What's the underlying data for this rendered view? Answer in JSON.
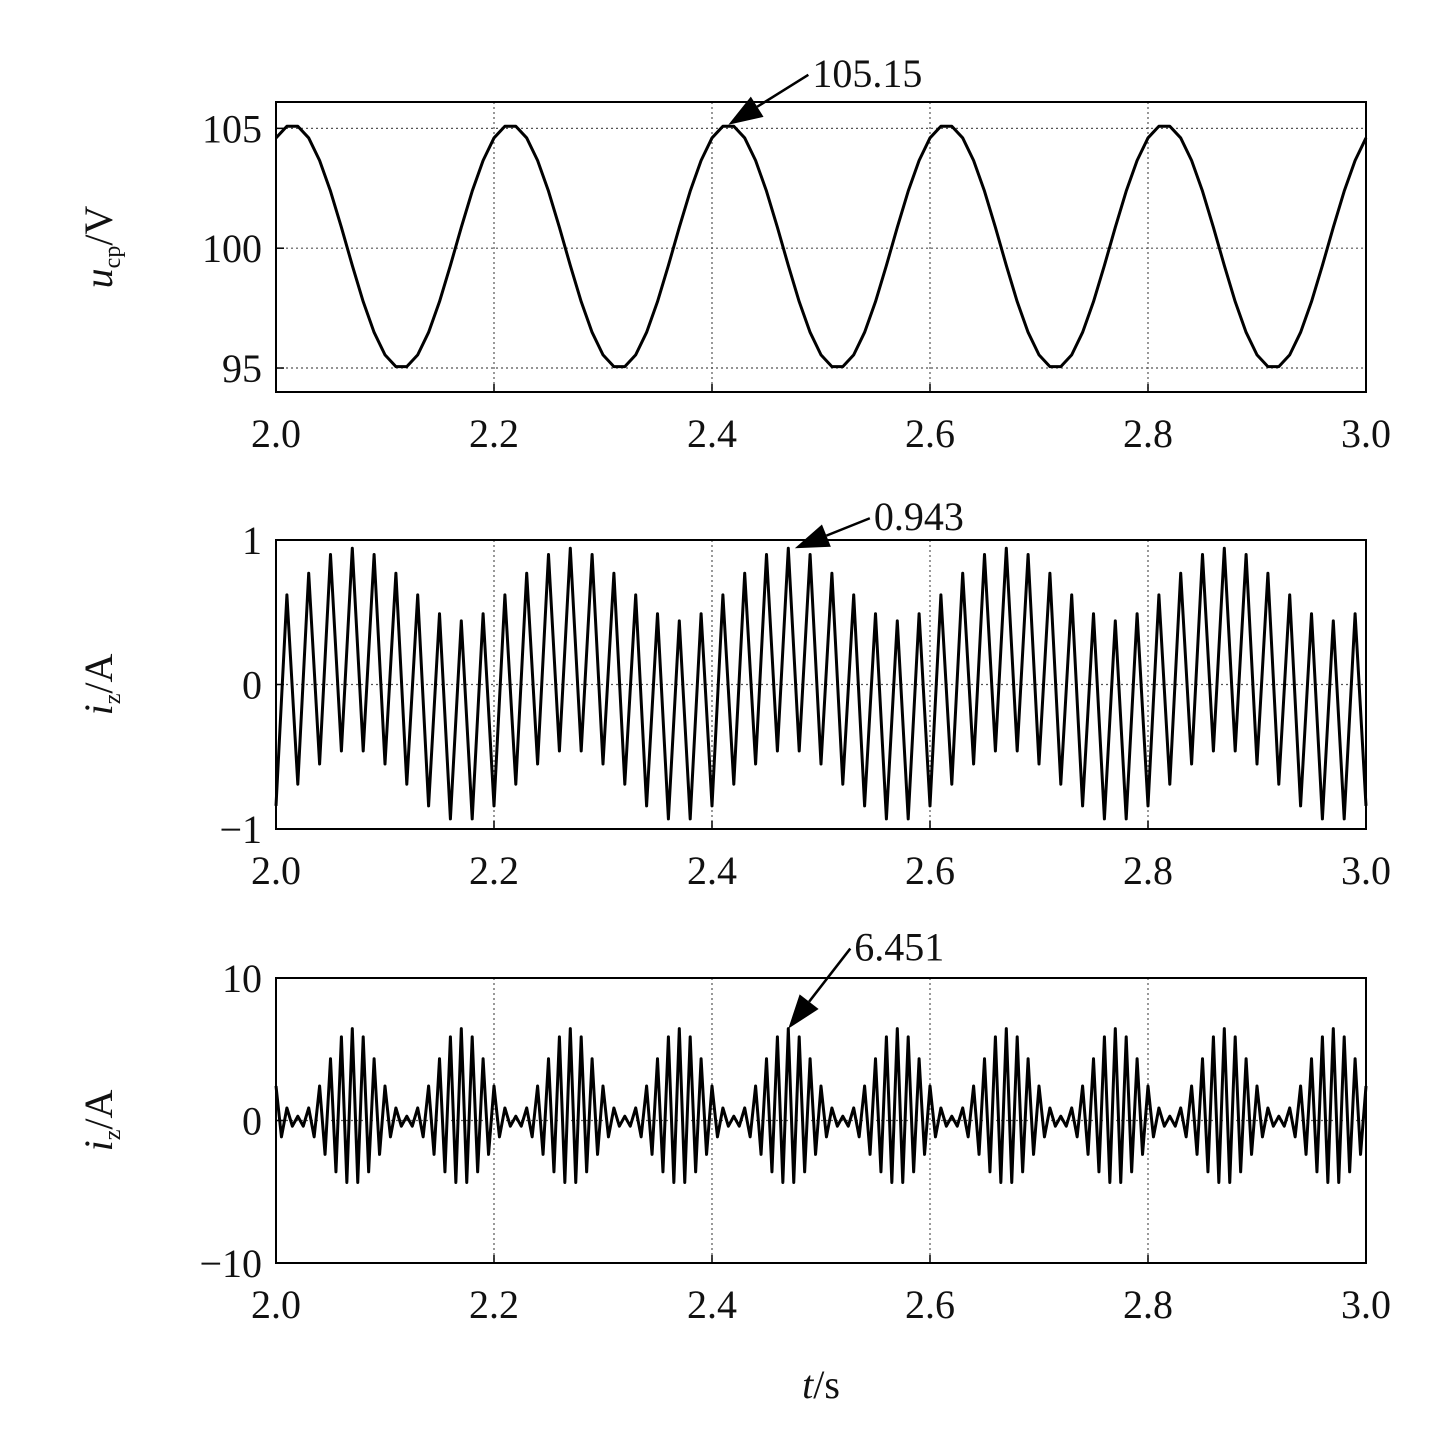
{
  "chart_data": [
    {
      "type": "line",
      "ylabel": {
        "text": "u",
        "sub": "cp",
        "unit": "/V"
      },
      "annotation": {
        "text": "105.15",
        "x": 2.415,
        "y": 105.15
      },
      "xlim": [
        2,
        3
      ],
      "xticks": [
        {
          "value": 2,
          "label": "2.0"
        },
        2.2,
        2.4,
        2.6,
        2.8,
        {
          "value": 3,
          "label": "3.0"
        }
      ],
      "ylim": [
        94,
        106.1
      ],
      "yticks": [
        95,
        100,
        105
      ],
      "grid": true,
      "x": [
        2,
        2.01,
        2.02,
        2.03,
        2.04,
        2.05,
        2.06,
        2.07,
        2.08,
        2.09,
        2.1,
        2.11,
        2.12,
        2.13,
        2.14,
        2.15,
        2.16,
        2.17,
        2.18,
        2.19,
        2.2,
        2.21,
        2.22,
        2.23,
        2.24,
        2.25,
        2.26,
        2.27,
        2.28,
        2.29,
        2.3,
        2.31,
        2.32,
        2.33,
        2.34,
        2.35,
        2.36,
        2.37,
        2.38,
        2.39,
        2.4,
        2.41,
        2.42,
        2.43,
        2.44,
        2.45,
        2.46,
        2.47,
        2.48,
        2.49,
        2.5,
        2.51,
        2.52,
        2.53,
        2.54,
        2.55,
        2.56,
        2.57,
        2.58,
        2.59,
        2.6,
        2.61,
        2.62,
        2.63,
        2.64,
        2.65,
        2.66,
        2.67,
        2.68,
        2.69,
        2.7,
        2.71,
        2.72,
        2.73,
        2.74,
        2.75,
        2.76,
        2.77,
        2.78,
        2.79,
        2.8,
        2.81,
        2.82,
        2.83,
        2.84,
        2.85,
        2.86,
        2.87,
        2.88,
        2.89,
        2.9,
        2.91,
        2.92,
        2.93,
        2.94,
        2.95,
        2.96,
        2.97,
        2.98,
        2.99,
        3
      ],
      "series": [
        {
          "color": "#000000",
          "values": [
            104.6,
            105.09,
            105.09,
            104.6,
            103.66,
            102.38,
            100.87,
            99.28,
            97.77,
            96.49,
            95.55,
            95.06,
            95.06,
            95.55,
            96.49,
            97.77,
            99.28,
            100.87,
            102.38,
            103.66,
            104.6,
            105.09,
            105.09,
            104.6,
            103.66,
            102.38,
            100.87,
            99.28,
            97.77,
            96.49,
            95.55,
            95.06,
            95.06,
            95.55,
            96.49,
            97.77,
            99.28,
            100.87,
            102.38,
            103.66,
            104.6,
            105.09,
            105.09,
            104.6,
            103.66,
            102.38,
            100.87,
            99.28,
            97.77,
            96.49,
            95.55,
            95.06,
            95.06,
            95.55,
            96.49,
            97.77,
            99.28,
            100.87,
            102.38,
            103.66,
            104.6,
            105.09,
            105.09,
            104.6,
            103.66,
            102.38,
            100.87,
            99.28,
            97.77,
            96.49,
            95.55,
            95.06,
            95.06,
            95.55,
            96.49,
            97.77,
            99.28,
            100.87,
            102.38,
            103.66,
            104.6,
            105.09,
            105.09,
            104.6,
            103.66,
            102.38,
            100.87,
            99.28,
            97.77,
            96.49,
            95.55,
            95.06,
            95.06,
            95.55,
            96.49,
            97.77,
            99.28,
            100.87,
            102.38,
            103.66,
            104.6
          ]
        }
      ]
    },
    {
      "type": "line",
      "ylabel": {
        "text": "i",
        "sub": "z",
        "unit": "/A"
      },
      "annotation": {
        "text": "0.943",
        "x": 2.476,
        "y": 0.943
      },
      "xlim": [
        2,
        3
      ],
      "xticks": [
        {
          "value": 2,
          "label": "2.0"
        },
        2.2,
        2.4,
        2.6,
        2.8,
        {
          "value": 3,
          "label": "3.0"
        }
      ],
      "ylim": [
        -1,
        1
      ],
      "yticks": [
        {
          "value": -1,
          "label": "−1"
        },
        0,
        1
      ],
      "grid": true,
      "x": [
        2,
        2.01,
        2.02,
        2.03,
        2.04,
        2.05,
        2.06,
        2.07,
        2.08,
        2.09,
        2.1,
        2.11,
        2.12,
        2.13,
        2.14,
        2.15,
        2.16,
        2.17,
        2.18,
        2.19,
        2.2,
        2.21,
        2.22,
        2.23,
        2.24,
        2.25,
        2.26,
        2.27,
        2.28,
        2.29,
        2.3,
        2.31,
        2.32,
        2.33,
        2.34,
        2.35,
        2.36,
        2.37,
        2.38,
        2.39,
        2.4,
        2.41,
        2.42,
        2.43,
        2.44,
        2.45,
        2.46,
        2.47,
        2.48,
        2.49,
        2.5,
        2.51,
        2.52,
        2.53,
        2.54,
        2.55,
        2.56,
        2.57,
        2.58,
        2.59,
        2.6,
        2.61,
        2.62,
        2.63,
        2.64,
        2.65,
        2.66,
        2.67,
        2.68,
        2.69,
        2.7,
        2.71,
        2.72,
        2.73,
        2.74,
        2.75,
        2.76,
        2.77,
        2.78,
        2.79,
        2.8,
        2.81,
        2.82,
        2.83,
        2.84,
        2.85,
        2.86,
        2.87,
        2.88,
        2.89,
        2.9,
        2.91,
        2.92,
        2.93,
        2.94,
        2.95,
        2.96,
        2.97,
        2.98,
        2.99,
        3
      ],
      "series": [
        {
          "color": "#000000",
          "values": [
            -0.84,
            0.62,
            -0.69,
            0.77,
            -0.55,
            0.9,
            -0.46,
            0.943,
            -0.46,
            0.9,
            -0.55,
            0.77,
            -0.69,
            0.62,
            -0.84,
            0.49,
            -0.93,
            0.44,
            -0.93,
            0.49,
            -0.84,
            0.62,
            -0.69,
            0.77,
            -0.55,
            0.9,
            -0.46,
            0.943,
            -0.46,
            0.9,
            -0.55,
            0.77,
            -0.69,
            0.62,
            -0.84,
            0.49,
            -0.93,
            0.44,
            -0.93,
            0.49,
            -0.84,
            0.62,
            -0.69,
            0.77,
            -0.55,
            0.9,
            -0.46,
            0.943,
            -0.46,
            0.9,
            -0.55,
            0.77,
            -0.69,
            0.62,
            -0.84,
            0.49,
            -0.93,
            0.44,
            -0.93,
            0.49,
            -0.84,
            0.62,
            -0.69,
            0.77,
            -0.55,
            0.9,
            -0.46,
            0.943,
            -0.46,
            0.9,
            -0.55,
            0.77,
            -0.69,
            0.62,
            -0.84,
            0.49,
            -0.93,
            0.44,
            -0.93,
            0.49,
            -0.84,
            0.62,
            -0.69,
            0.77,
            -0.55,
            0.9,
            -0.46,
            0.943,
            -0.46,
            0.9,
            -0.55,
            0.77,
            -0.69,
            0.62,
            -0.84,
            0.49,
            -0.93,
            0.44,
            -0.93,
            0.49,
            -0.84
          ]
        }
      ]
    },
    {
      "type": "line",
      "ylabel": {
        "text": "i",
        "sub": "z",
        "unit": "/A"
      },
      "xlabel": {
        "text": "t",
        "unit": "/s"
      },
      "annotation": {
        "text": "6.451",
        "x": 2.47,
        "y": 6.451
      },
      "xlim": [
        2,
        3
      ],
      "xticks": [
        {
          "value": 2,
          "label": "2.0"
        },
        2.2,
        2.4,
        2.6,
        2.8,
        {
          "value": 3,
          "label": "3.0"
        }
      ],
      "ylim": [
        -10,
        10
      ],
      "yticks": [
        {
          "value": -10,
          "label": "−10"
        },
        0,
        10
      ],
      "grid": true,
      "x": [
        2,
        2.005,
        2.01,
        2.015,
        2.02,
        2.025,
        2.03,
        2.035,
        2.04,
        2.045,
        2.05,
        2.055,
        2.06,
        2.065,
        2.07,
        2.075,
        2.08,
        2.085,
        2.09,
        2.095,
        2.1,
        2.105,
        2.11,
        2.115,
        2.12,
        2.125,
        2.13,
        2.135,
        2.14,
        2.145,
        2.15,
        2.155,
        2.16,
        2.165,
        2.17,
        2.175,
        2.18,
        2.185,
        2.19,
        2.195,
        2.2,
        2.205,
        2.21,
        2.215,
        2.22,
        2.225,
        2.23,
        2.235,
        2.24,
        2.245,
        2.25,
        2.255,
        2.26,
        2.265,
        2.27,
        2.275,
        2.28,
        2.285,
        2.29,
        2.295,
        2.3,
        2.305,
        2.31,
        2.315,
        2.32,
        2.325,
        2.33,
        2.335,
        2.34,
        2.345,
        2.35,
        2.355,
        2.36,
        2.365,
        2.37,
        2.375,
        2.38,
        2.385,
        2.39,
        2.395,
        2.4,
        2.405,
        2.41,
        2.415,
        2.42,
        2.425,
        2.43,
        2.435,
        2.44,
        2.445,
        2.45,
        2.455,
        2.46,
        2.465,
        2.47,
        2.475,
        2.48,
        2.485,
        2.49,
        2.495,
        2.5,
        2.505,
        2.51,
        2.515,
        2.52,
        2.525,
        2.53,
        2.535,
        2.54,
        2.545,
        2.55,
        2.555,
        2.56,
        2.565,
        2.57,
        2.575,
        2.58,
        2.585,
        2.59,
        2.595,
        2.6,
        2.605,
        2.61,
        2.615,
        2.62,
        2.625,
        2.63,
        2.635,
        2.64,
        2.645,
        2.65,
        2.655,
        2.66,
        2.665,
        2.67,
        2.675,
        2.68,
        2.685,
        2.69,
        2.695,
        2.7,
        2.705,
        2.71,
        2.715,
        2.72,
        2.725,
        2.73,
        2.735,
        2.74,
        2.745,
        2.75,
        2.755,
        2.76,
        2.765,
        2.77,
        2.775,
        2.78,
        2.785,
        2.79,
        2.795,
        2.8,
        2.805,
        2.81,
        2.815,
        2.82,
        2.825,
        2.83,
        2.835,
        2.84,
        2.845,
        2.85,
        2.855,
        2.86,
        2.865,
        2.87,
        2.875,
        2.88,
        2.885,
        2.89,
        2.895,
        2.9,
        2.905,
        2.91,
        2.915,
        2.92,
        2.925,
        2.93,
        2.935,
        2.94,
        2.945,
        2.95,
        2.955,
        2.96,
        2.965,
        2.97,
        2.975,
        2.98,
        2.985,
        2.99,
        2.995,
        3
      ],
      "series": [
        {
          "color": "#000000",
          "values": [
            2.42,
            -1.15,
            0.88,
            -0.4,
            0.3,
            -0.4,
            0.88,
            -1.15,
            2.42,
            -2.38,
            4.33,
            -3.6,
            5.87,
            -4.35,
            6.45,
            -4.35,
            5.87,
            -3.6,
            4.33,
            -2.38,
            2.42,
            -1.15,
            0.88,
            -0.4,
            0.3,
            -0.4,
            0.88,
            -1.15,
            2.42,
            -2.38,
            4.33,
            -3.6,
            5.87,
            -4.35,
            6.45,
            -4.35,
            5.87,
            -3.6,
            4.33,
            -2.38,
            2.42,
            -1.15,
            0.88,
            -0.4,
            0.3,
            -0.4,
            0.88,
            -1.15,
            2.42,
            -2.38,
            4.33,
            -3.6,
            5.87,
            -4.35,
            6.45,
            -4.35,
            5.87,
            -3.6,
            4.33,
            -2.38,
            2.42,
            -1.15,
            0.88,
            -0.4,
            0.3,
            -0.4,
            0.88,
            -1.15,
            2.42,
            -2.38,
            4.33,
            -3.6,
            5.87,
            -4.35,
            6.45,
            -4.35,
            5.87,
            -3.6,
            4.33,
            -2.38,
            2.42,
            -1.15,
            0.88,
            -0.4,
            0.3,
            -0.4,
            0.88,
            -1.15,
            2.42,
            -2.38,
            4.33,
            -3.6,
            5.87,
            -4.35,
            6.45,
            -4.35,
            5.87,
            -3.6,
            4.33,
            -2.38,
            2.42,
            -1.15,
            0.88,
            -0.4,
            0.3,
            -0.4,
            0.88,
            -1.15,
            2.42,
            -2.38,
            4.33,
            -3.6,
            5.87,
            -4.35,
            6.45,
            -4.35,
            5.87,
            -3.6,
            4.33,
            -2.38,
            2.42,
            -1.15,
            0.88,
            -0.4,
            0.3,
            -0.4,
            0.88,
            -1.15,
            2.42,
            -2.38,
            4.33,
            -3.6,
            5.87,
            -4.35,
            6.45,
            -4.35,
            5.87,
            -3.6,
            4.33,
            -2.38,
            2.42,
            -1.15,
            0.88,
            -0.4,
            0.3,
            -0.4,
            0.88,
            -1.15,
            2.42,
            -2.38,
            4.33,
            -3.6,
            5.87,
            -4.35,
            6.45,
            -4.35,
            5.87,
            -3.6,
            4.33,
            -2.38,
            2.42,
            -1.15,
            0.88,
            -0.4,
            0.3,
            -0.4,
            0.88,
            -1.15,
            2.42,
            -2.38,
            4.33,
            -3.6,
            5.87,
            -4.35,
            6.45,
            -4.35,
            5.87,
            -3.6,
            4.33,
            -2.38,
            2.42,
            -1.15,
            0.88,
            -0.4,
            0.3,
            -0.4,
            0.88,
            -1.15,
            2.42,
            -2.38,
            4.33,
            -3.6,
            5.87,
            -4.35,
            6.45,
            -4.35,
            5.87,
            -3.6,
            4.33,
            -2.38,
            2.42
          ]
        }
      ]
    }
  ]
}
